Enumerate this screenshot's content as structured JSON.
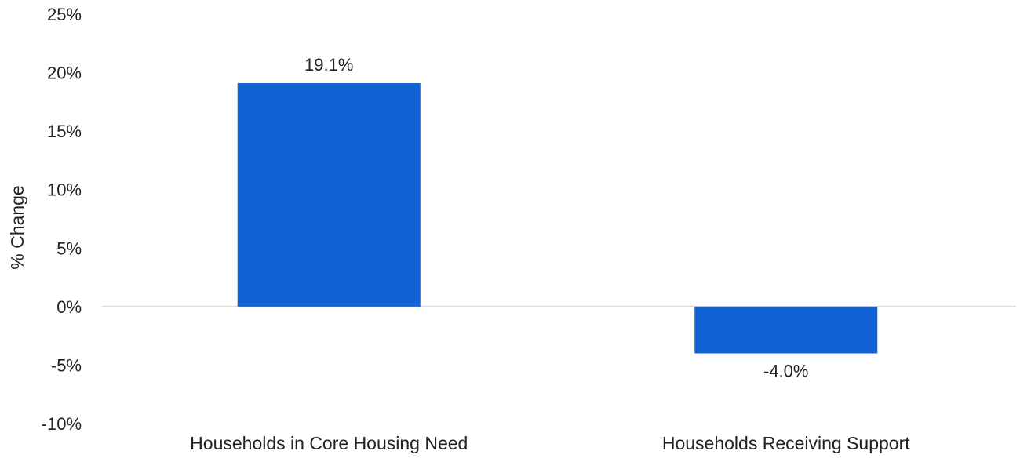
{
  "chart_data": {
    "type": "bar",
    "title": "",
    "xlabel": "",
    "ylabel": "% Change",
    "categories": [
      "Households in Core Housing Need",
      "Households Receiving Support"
    ],
    "values": [
      19.1,
      -4.0
    ],
    "value_labels": [
      "19.1%",
      "-4.0%"
    ],
    "ylim": [
      -10,
      25
    ],
    "yticks": [
      25,
      20,
      15,
      10,
      5,
      0,
      -5,
      -10
    ],
    "ytick_labels": [
      "25%",
      "20%",
      "15%",
      "10%",
      "5%",
      "0%",
      "-5%",
      "-10%"
    ],
    "grid": false,
    "legend": "none",
    "bar_color": "#1160d6",
    "zero_line_color": "#d9d9d9"
  }
}
